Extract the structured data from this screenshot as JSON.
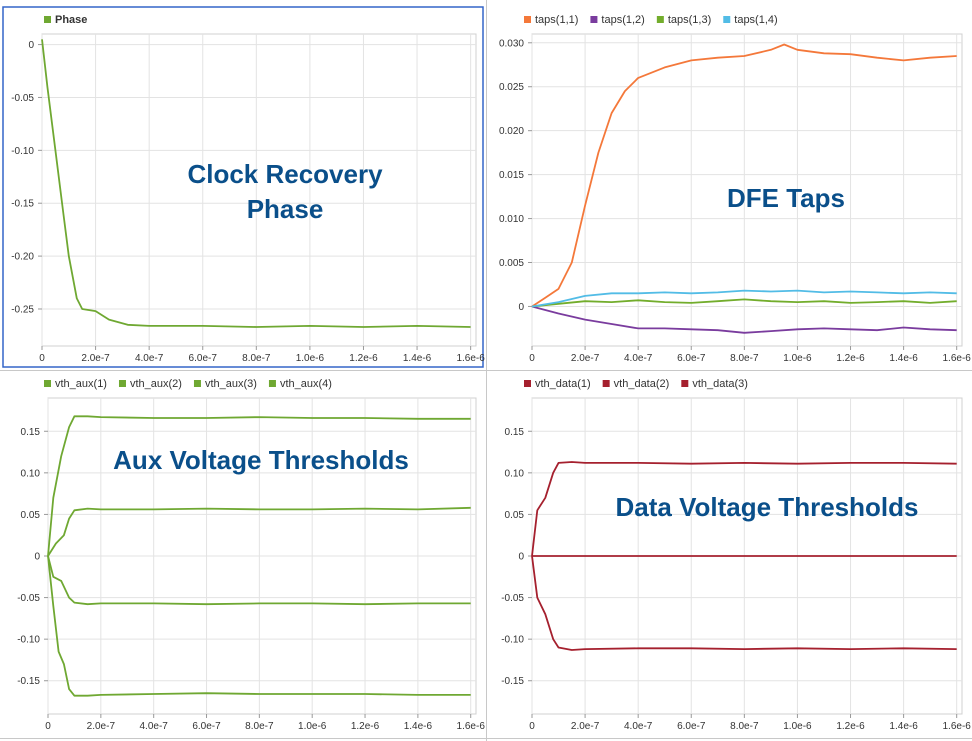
{
  "colors": {
    "phase": "#6fa832",
    "aux": "#6fa832",
    "taps_1_1": "#f4783a",
    "taps_1_2": "#7a3c9e",
    "taps_1_3": "#73ad2c",
    "taps_1_4": "#52bce6",
    "vth_data": "#a5202e",
    "overlay_text": "#0a4f8a",
    "grid": "#e3e3e3",
    "axis": "#999999",
    "tick_text": "#333333",
    "selected_border": "#3465c9"
  },
  "chart_data": [
    {
      "id": "phase",
      "type": "line",
      "title": "Clock Recovery Phase",
      "title_lines": [
        "Clock Recovery",
        "Phase"
      ],
      "xlim": [
        0,
        1.62e-06
      ],
      "ylim": [
        -0.285,
        0.01
      ],
      "xticks": [
        0,
        2e-07,
        4e-07,
        6e-07,
        8e-07,
        1e-06,
        1.2e-06,
        1.4e-06,
        1.6e-06
      ],
      "xtick_labels": [
        "0",
        "2.0e-7",
        "4.0e-7",
        "6.0e-7",
        "8.0e-7",
        "1.0e-6",
        "1.2e-6",
        "1.4e-6",
        "1.6e-6"
      ],
      "yticks": [
        0,
        -0.05,
        -0.1,
        -0.15,
        -0.2,
        -0.25
      ],
      "ytick_labels": [
        "0",
        "-0.05",
        "-0.10",
        "-0.15",
        "-0.20",
        "-0.25"
      ],
      "legend_position": "top-left",
      "grid": true,
      "selected": true,
      "series": [
        {
          "name": "Phase",
          "color_key": "phase",
          "points": [
            [
              0,
              0.005
            ],
            [
              2e-08,
              -0.04
            ],
            [
              5e-08,
              -0.1
            ],
            [
              8e-08,
              -0.16
            ],
            [
              1e-07,
              -0.2
            ],
            [
              1.3e-07,
              -0.24
            ],
            [
              1.5e-07,
              -0.25
            ],
            [
              2e-07,
              -0.252
            ],
            [
              2.5e-07,
              -0.26
            ],
            [
              3.2e-07,
              -0.265
            ],
            [
              4e-07,
              -0.266
            ],
            [
              6e-07,
              -0.266
            ],
            [
              8e-07,
              -0.267
            ],
            [
              1e-06,
              -0.266
            ],
            [
              1.2e-06,
              -0.267
            ],
            [
              1.4e-06,
              -0.266
            ],
            [
              1.6e-06,
              -0.267
            ]
          ]
        }
      ]
    },
    {
      "id": "taps",
      "type": "line",
      "title": "DFE Taps",
      "title_lines": [
        "DFE Taps"
      ],
      "xlim": [
        0,
        1.62e-06
      ],
      "ylim": [
        -0.0045,
        0.031
      ],
      "xticks": [
        0,
        2e-07,
        4e-07,
        6e-07,
        8e-07,
        1e-06,
        1.2e-06,
        1.4e-06,
        1.6e-06
      ],
      "xtick_labels": [
        "0",
        "2.0e-7",
        "4.0e-7",
        "6.0e-7",
        "8.0e-7",
        "1.0e-6",
        "1.2e-6",
        "1.4e-6",
        "1.6e-6"
      ],
      "yticks": [
        0,
        0.005,
        0.01,
        0.015,
        0.02,
        0.025,
        0.03
      ],
      "ytick_labels": [
        "0",
        "0.005",
        "0.010",
        "0.015",
        "0.020",
        "0.025",
        "0.030"
      ],
      "legend_position": "top-left",
      "grid": true,
      "selected": false,
      "series": [
        {
          "name": "taps(1,1)",
          "color_key": "taps_1_1",
          "points": [
            [
              0,
              0.0
            ],
            [
              5e-08,
              0.001
            ],
            [
              1e-07,
              0.002
            ],
            [
              1.5e-07,
              0.005
            ],
            [
              2e-07,
              0.0115
            ],
            [
              2.5e-07,
              0.0175
            ],
            [
              3e-07,
              0.022
            ],
            [
              3.5e-07,
              0.0245
            ],
            [
              4e-07,
              0.026
            ],
            [
              5e-07,
              0.0272
            ],
            [
              6e-07,
              0.028
            ],
            [
              7e-07,
              0.0283
            ],
            [
              8e-07,
              0.0285
            ],
            [
              9e-07,
              0.0292
            ],
            [
              9.5e-07,
              0.0298
            ],
            [
              1e-06,
              0.0292
            ],
            [
              1.1e-06,
              0.0288
            ],
            [
              1.2e-06,
              0.0287
            ],
            [
              1.3e-06,
              0.0283
            ],
            [
              1.4e-06,
              0.028
            ],
            [
              1.5e-06,
              0.0283
            ],
            [
              1.6e-06,
              0.0285
            ]
          ]
        },
        {
          "name": "taps(1,2)",
          "color_key": "taps_1_2",
          "points": [
            [
              0,
              0.0
            ],
            [
              1e-07,
              -0.0008
            ],
            [
              2e-07,
              -0.0015
            ],
            [
              3e-07,
              -0.002
            ],
            [
              4e-07,
              -0.0025
            ],
            [
              5e-07,
              -0.0025
            ],
            [
              6e-07,
              -0.0026
            ],
            [
              7e-07,
              -0.0027
            ],
            [
              8e-07,
              -0.003
            ],
            [
              9e-07,
              -0.0028
            ],
            [
              1e-06,
              -0.0026
            ],
            [
              1.1e-06,
              -0.0025
            ],
            [
              1.2e-06,
              -0.0026
            ],
            [
              1.3e-06,
              -0.0027
            ],
            [
              1.4e-06,
              -0.0024
            ],
            [
              1.5e-06,
              -0.0026
            ],
            [
              1.6e-06,
              -0.0027
            ]
          ]
        },
        {
          "name": "taps(1,3)",
          "color_key": "taps_1_3",
          "points": [
            [
              0,
              0.0
            ],
            [
              1e-07,
              0.0003
            ],
            [
              2e-07,
              0.0006
            ],
            [
              3e-07,
              0.0005
            ],
            [
              4e-07,
              0.0007
            ],
            [
              5e-07,
              0.0005
            ],
            [
              6e-07,
              0.0004
            ],
            [
              7e-07,
              0.0006
            ],
            [
              8e-07,
              0.0008
            ],
            [
              9e-07,
              0.0006
            ],
            [
              1e-06,
              0.0005
            ],
            [
              1.1e-06,
              0.0006
            ],
            [
              1.2e-06,
              0.0004
            ],
            [
              1.3e-06,
              0.0005
            ],
            [
              1.4e-06,
              0.0006
            ],
            [
              1.5e-06,
              0.0004
            ],
            [
              1.6e-06,
              0.0006
            ]
          ]
        },
        {
          "name": "taps(1,4)",
          "color_key": "taps_1_4",
          "points": [
            [
              0,
              0.0
            ],
            [
              1e-07,
              0.0005
            ],
            [
              2e-07,
              0.0012
            ],
            [
              3e-07,
              0.0015
            ],
            [
              4e-07,
              0.0015
            ],
            [
              5e-07,
              0.0016
            ],
            [
              6e-07,
              0.0015
            ],
            [
              7e-07,
              0.0016
            ],
            [
              8e-07,
              0.0018
            ],
            [
              9e-07,
              0.0017
            ],
            [
              1e-06,
              0.0018
            ],
            [
              1.1e-06,
              0.0016
            ],
            [
              1.2e-06,
              0.0017
            ],
            [
              1.3e-06,
              0.0016
            ],
            [
              1.4e-06,
              0.0015
            ],
            [
              1.5e-06,
              0.0016
            ],
            [
              1.6e-06,
              0.0015
            ]
          ]
        }
      ]
    },
    {
      "id": "aux",
      "type": "line",
      "title": "Aux Voltage Thresholds",
      "title_lines": [
        "Aux Voltage Thresholds"
      ],
      "xlim": [
        0,
        1.62e-06
      ],
      "ylim": [
        -0.19,
        0.19
      ],
      "xticks": [
        0,
        2e-07,
        4e-07,
        6e-07,
        8e-07,
        1e-06,
        1.2e-06,
        1.4e-06,
        1.6e-06
      ],
      "xtick_labels": [
        "0",
        "2.0e-7",
        "4.0e-7",
        "6.0e-7",
        "8.0e-7",
        "1.0e-6",
        "1.2e-6",
        "1.4e-6",
        "1.6e-6"
      ],
      "yticks": [
        0.15,
        0.1,
        0.05,
        0,
        -0.05,
        -0.1,
        -0.15
      ],
      "ytick_labels": [
        "0.15",
        "0.10",
        "0.05",
        "0",
        "-0.05",
        "-0.10",
        "-0.15"
      ],
      "legend_position": "top-left",
      "grid": true,
      "selected": false,
      "series": [
        {
          "name": "vth_aux(1)",
          "color_key": "aux",
          "points": [
            [
              0,
              0.0
            ],
            [
              2e-08,
              0.07
            ],
            [
              5e-08,
              0.12
            ],
            [
              8e-08,
              0.155
            ],
            [
              1e-07,
              0.168
            ],
            [
              1.5e-07,
              0.168
            ],
            [
              2e-07,
              0.167
            ],
            [
              4e-07,
              0.166
            ],
            [
              6e-07,
              0.166
            ],
            [
              8e-07,
              0.167
            ],
            [
              1e-06,
              0.166
            ],
            [
              1.2e-06,
              0.166
            ],
            [
              1.4e-06,
              0.165
            ],
            [
              1.6e-06,
              0.165
            ]
          ]
        },
        {
          "name": "vth_aux(2)",
          "color_key": "aux",
          "points": [
            [
              0,
              0.0
            ],
            [
              3e-08,
              0.015
            ],
            [
              6e-08,
              0.025
            ],
            [
              8e-08,
              0.045
            ],
            [
              1e-07,
              0.055
            ],
            [
              1.5e-07,
              0.057
            ],
            [
              2e-07,
              0.056
            ],
            [
              4e-07,
              0.056
            ],
            [
              6e-07,
              0.057
            ],
            [
              8e-07,
              0.056
            ],
            [
              1e-06,
              0.056
            ],
            [
              1.2e-06,
              0.057
            ],
            [
              1.4e-06,
              0.056
            ],
            [
              1.6e-06,
              0.058
            ]
          ]
        },
        {
          "name": "vth_aux(3)",
          "color_key": "aux",
          "points": [
            [
              0,
              0.0
            ],
            [
              2e-08,
              -0.025
            ],
            [
              5e-08,
              -0.03
            ],
            [
              8e-08,
              -0.05
            ],
            [
              1e-07,
              -0.056
            ],
            [
              1.5e-07,
              -0.058
            ],
            [
              2e-07,
              -0.057
            ],
            [
              4e-07,
              -0.057
            ],
            [
              6e-07,
              -0.058
            ],
            [
              8e-07,
              -0.057
            ],
            [
              1e-06,
              -0.057
            ],
            [
              1.2e-06,
              -0.058
            ],
            [
              1.4e-06,
              -0.057
            ],
            [
              1.6e-06,
              -0.057
            ]
          ]
        },
        {
          "name": "vth_aux(4)",
          "color_key": "aux",
          "points": [
            [
              0,
              0.0
            ],
            [
              2e-08,
              -0.06
            ],
            [
              4e-08,
              -0.115
            ],
            [
              6e-08,
              -0.13
            ],
            [
              8e-08,
              -0.16
            ],
            [
              1e-07,
              -0.168
            ],
            [
              1.5e-07,
              -0.168
            ],
            [
              2e-07,
              -0.167
            ],
            [
              4e-07,
              -0.166
            ],
            [
              6e-07,
              -0.165
            ],
            [
              8e-07,
              -0.166
            ],
            [
              1e-06,
              -0.166
            ],
            [
              1.2e-06,
              -0.166
            ],
            [
              1.4e-06,
              -0.167
            ],
            [
              1.6e-06,
              -0.167
            ]
          ]
        }
      ]
    },
    {
      "id": "data",
      "type": "line",
      "title": "Data Voltage Thresholds",
      "title_lines": [
        "Data Voltage Thresholds"
      ],
      "xlim": [
        0,
        1.62e-06
      ],
      "ylim": [
        -0.19,
        0.19
      ],
      "xticks": [
        0,
        2e-07,
        4e-07,
        6e-07,
        8e-07,
        1e-06,
        1.2e-06,
        1.4e-06,
        1.6e-06
      ],
      "xtick_labels": [
        "0",
        "2.0e-7",
        "4.0e-7",
        "6.0e-7",
        "8.0e-7",
        "1.0e-6",
        "1.2e-6",
        "1.4e-6",
        "1.6e-6"
      ],
      "yticks": [
        0.15,
        0.1,
        0.05,
        0,
        -0.05,
        -0.1,
        -0.15
      ],
      "ytick_labels": [
        "0.15",
        "0.10",
        "0.05",
        "0",
        "-0.05",
        "-0.10",
        "-0.15"
      ],
      "legend_position": "top-left",
      "grid": true,
      "selected": false,
      "series": [
        {
          "name": "vth_data(1)",
          "color_key": "vth_data",
          "points": [
            [
              0,
              0.0
            ],
            [
              2e-08,
              0.055
            ],
            [
              5e-08,
              0.07
            ],
            [
              8e-08,
              0.1
            ],
            [
              1e-07,
              0.112
            ],
            [
              1.5e-07,
              0.113
            ],
            [
              2e-07,
              0.112
            ],
            [
              4e-07,
              0.112
            ],
            [
              6e-07,
              0.111
            ],
            [
              8e-07,
              0.112
            ],
            [
              1e-06,
              0.111
            ],
            [
              1.2e-06,
              0.112
            ],
            [
              1.4e-06,
              0.112
            ],
            [
              1.6e-06,
              0.111
            ]
          ]
        },
        {
          "name": "vth_data(2)",
          "color_key": "vth_data",
          "points": [
            [
              0,
              0.0
            ],
            [
              1.6e-06,
              0.0
            ]
          ]
        },
        {
          "name": "vth_data(3)",
          "color_key": "vth_data",
          "points": [
            [
              0,
              0.0
            ],
            [
              2e-08,
              -0.05
            ],
            [
              5e-08,
              -0.07
            ],
            [
              8e-08,
              -0.1
            ],
            [
              1e-07,
              -0.11
            ],
            [
              1.5e-07,
              -0.113
            ],
            [
              2e-07,
              -0.112
            ],
            [
              4e-07,
              -0.111
            ],
            [
              6e-07,
              -0.111
            ],
            [
              8e-07,
              -0.112
            ],
            [
              1e-06,
              -0.111
            ],
            [
              1.2e-06,
              -0.112
            ],
            [
              1.4e-06,
              -0.111
            ],
            [
              1.6e-06,
              -0.112
            ]
          ]
        }
      ]
    }
  ]
}
